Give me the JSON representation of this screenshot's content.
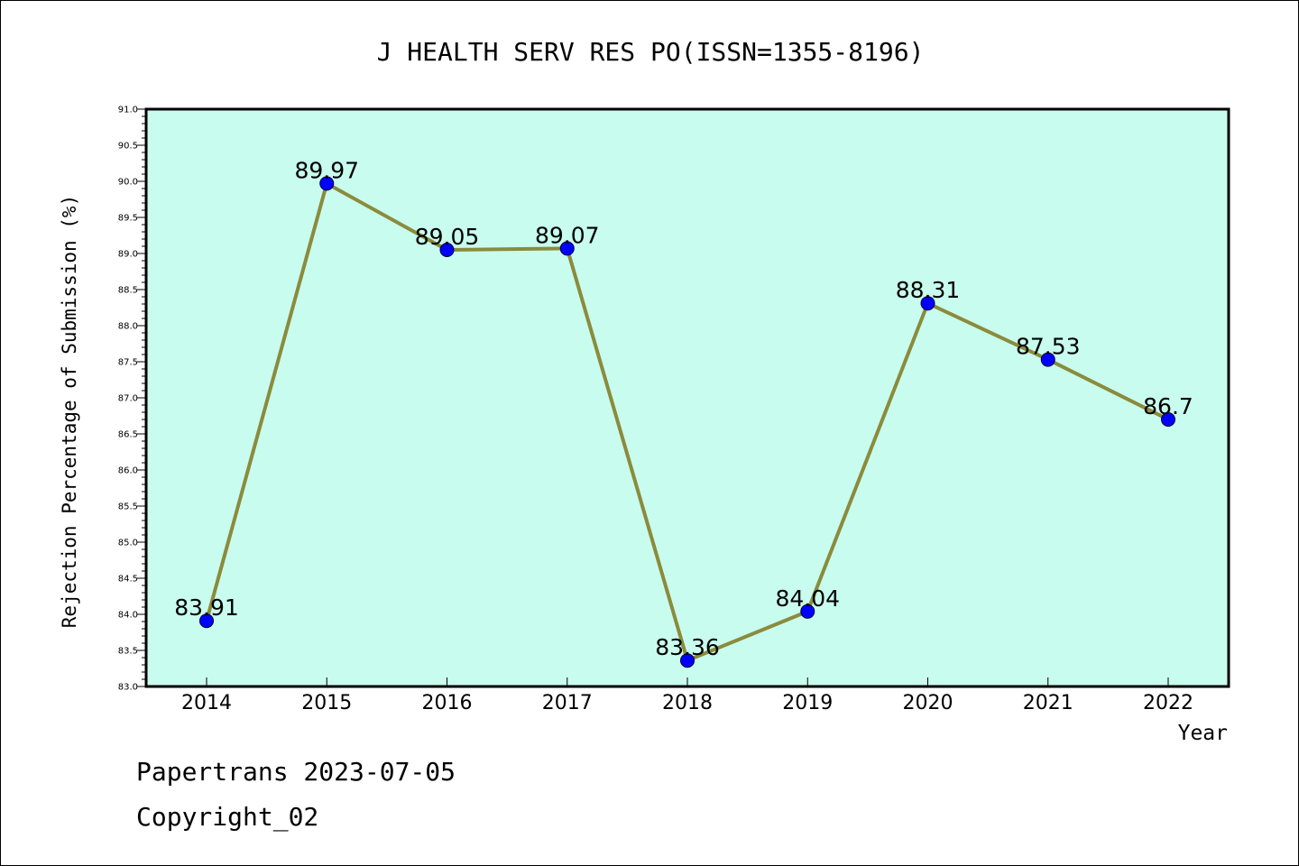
{
  "chart_data": {
    "type": "line",
    "title": "J HEALTH SERV RES PO(ISSN=1355-8196)",
    "xlabel": "Year",
    "ylabel": "Rejection Percentage of Submission (%)",
    "categories": [
      "2014",
      "2015",
      "2016",
      "2017",
      "2018",
      "2019",
      "2020",
      "2021",
      "2022"
    ],
    "series": [
      {
        "values": [
          83.91,
          89.97,
          89.05,
          89.07,
          83.36,
          84.04,
          88.31,
          87.53,
          86.7
        ],
        "labels": [
          "83.91",
          "89.97",
          "89.05",
          "89.07",
          "83.36",
          "84.04",
          "88.31",
          "87.53",
          "86.7"
        ]
      }
    ],
    "ylim": [
      83.0,
      91.0
    ],
    "yticks": [
      "83.0",
      "83.5",
      "84.0",
      "84.5",
      "85.0",
      "85.5",
      "86.0",
      "86.5",
      "87.0",
      "87.5",
      "88.0",
      "88.5",
      "89.0",
      "89.5",
      "90.0",
      "90.5",
      "91.0"
    ],
    "grid": false,
    "colors": {
      "plot_background": "#c8fcee",
      "line": "#8b8b3c",
      "marker": "#0000ff"
    }
  },
  "footer": {
    "line1": "Papertrans 2023-07-05",
    "line2": "Copyright_02"
  }
}
